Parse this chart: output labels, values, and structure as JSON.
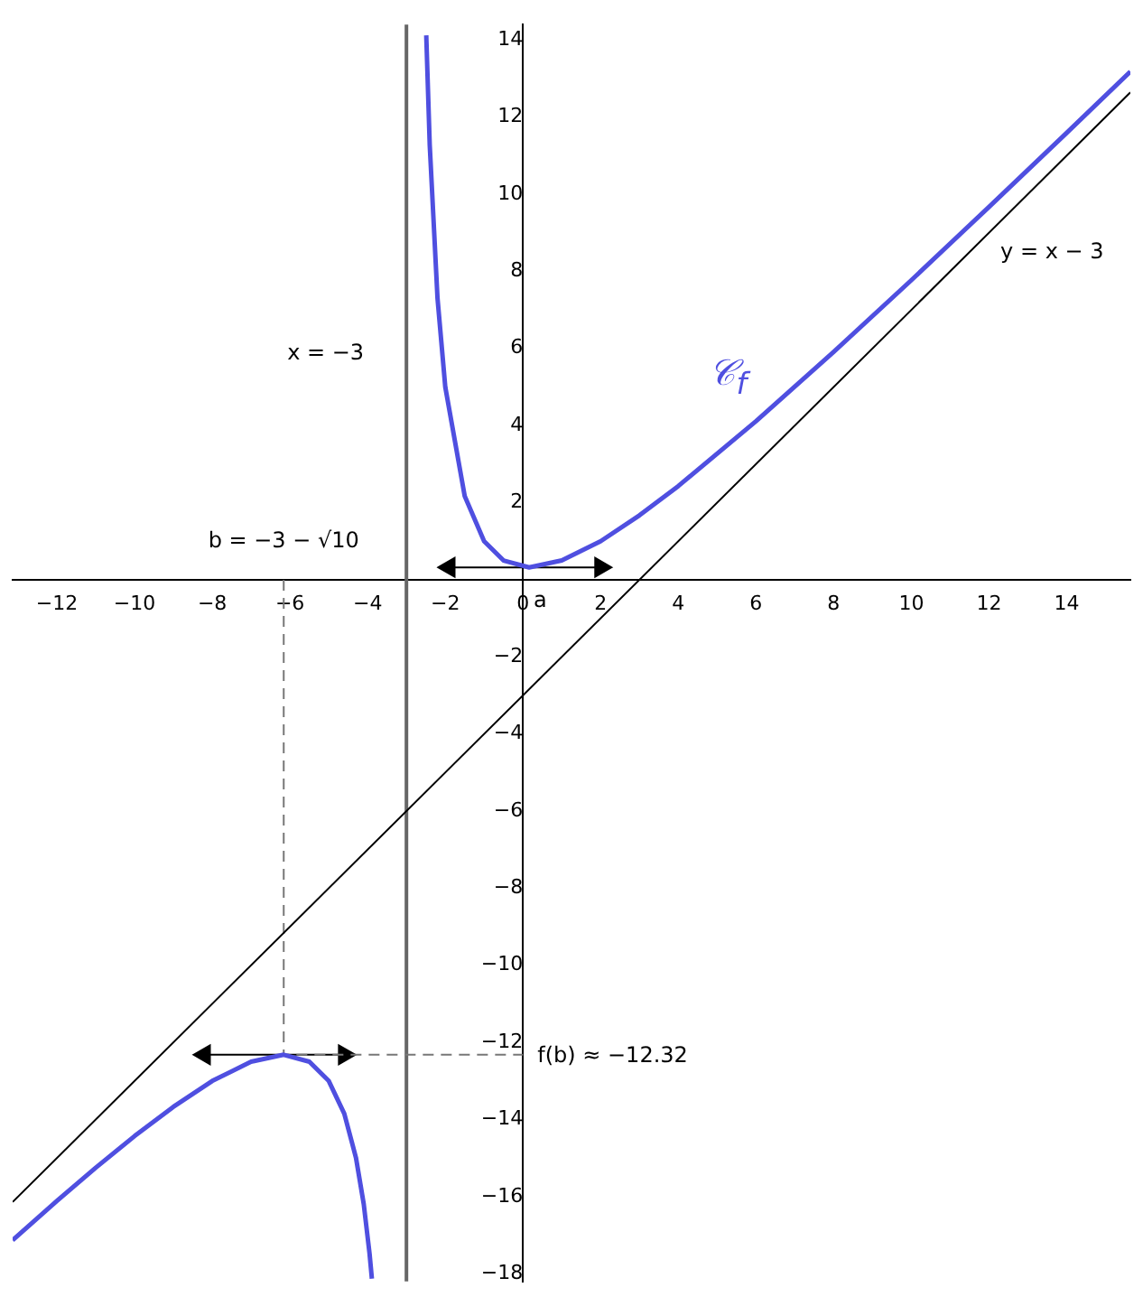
{
  "chart_data": {
    "type": "line",
    "xlim": [
      -13.14,
      15.64
    ],
    "ylim": [
      -18.2,
      14.4
    ],
    "xticks": [
      -12,
      -10,
      -8,
      -6,
      -4,
      -2,
      0,
      2,
      4,
      6,
      8,
      10,
      12,
      14
    ],
    "yticks": [
      -18,
      -16,
      -14,
      -12,
      -10,
      -8,
      -6,
      -4,
      -2,
      2,
      4,
      6,
      8,
      10,
      12,
      14
    ],
    "grid": false,
    "legend": false,
    "marker": "none",
    "line_style": "solid",
    "series": [
      {
        "color": "#4f4fe0",
        "x": [
          -13.14,
          -12,
          -11,
          -10,
          -9,
          -8,
          -7,
          -6.16,
          -5.5,
          -5,
          -4.6,
          -4.3,
          -4.1,
          -3.95,
          -3.89,
          -3,
          -2.49,
          -2.4,
          -2.2,
          -2,
          -1.5,
          -1,
          -0.5,
          0.16,
          1,
          2,
          3,
          4,
          6,
          8,
          10,
          12,
          14,
          15.64
        ],
        "values": [
          -17.13,
          -16.11,
          -15.25,
          -14.43,
          -13.67,
          -13,
          -12.5,
          -12.32,
          -12.5,
          -13,
          -13.85,
          -14.99,
          -16.19,
          -17.48,
          -18.13,
          null,
          14.12,
          11.27,
          7.3,
          5,
          2.17,
          1,
          0.5,
          0.32,
          0.5,
          1,
          1.67,
          2.43,
          4.11,
          5.91,
          7.77,
          9.67,
          11.59,
          13.18
        ]
      },
      {
        "color": "#000000",
        "x": [
          -13.14,
          15.64
        ],
        "values": [
          -16.14,
          12.64
        ]
      },
      {
        "color": "#777777",
        "line_style": "dashed",
        "x": [
          -6.16,
          -6.16,
          0
        ],
        "values": [
          0,
          -12.32,
          -12.32
        ]
      },
      {
        "color": "#000000",
        "marker": "triangle",
        "x": [
          -1.9,
          2
        ],
        "values": [
          0.32,
          0.32
        ]
      },
      {
        "color": "#000000",
        "marker": "triangle",
        "x": [
          -8.2,
          -4.6
        ],
        "values": [
          -12.32,
          -12.32
        ]
      }
    ],
    "ref_lines": [
      {
        "axis": "x",
        "value": -3,
        "color": "#666666"
      }
    ],
    "annotations": [
      "x = −3",
      "y = x − 3",
      "𝒞$_{f}$",
      {
        "text": "b = −3 − √10",
        "x": -6.16,
        "y": 0
      },
      "a",
      {
        "text": "f(b) ≈ −12.32",
        "x": 0,
        "y": -12.32
      }
    ]
  }
}
